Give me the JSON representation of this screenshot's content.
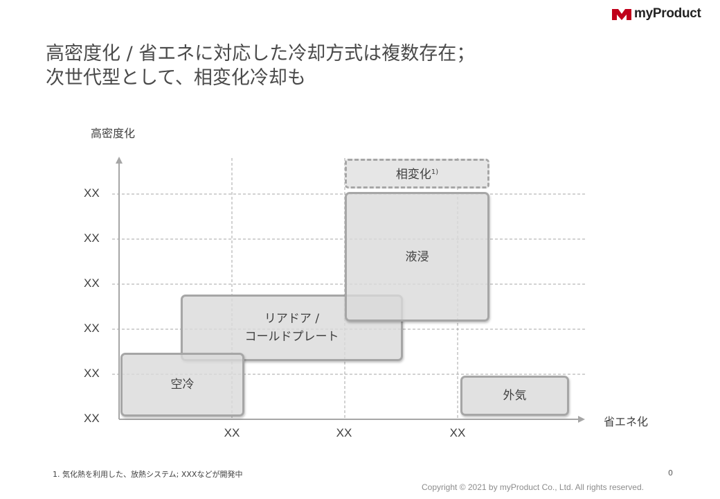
{
  "brand": {
    "name": "myProduct",
    "logo_color": "#c0001a"
  },
  "title": {
    "line1": "高密度化 / 省エネに対応した冷却方式は複数存在；",
    "line2": "次世代型として、相変化冷却も"
  },
  "diagram": {
    "y_axis_label": "高密度化",
    "x_axis_label": "省エネ化",
    "y_ticks": [
      "XX",
      "XX",
      "XX",
      "XX",
      "XX",
      "XX"
    ],
    "x_ticks": [
      "XX",
      "XX",
      "XX"
    ],
    "boxes": {
      "phase_change": {
        "label": "相変化",
        "note": "1)"
      },
      "immersion": {
        "label": "液浸"
      },
      "rear_door": {
        "line1": "リアドア /",
        "line2": "コールドプレート"
      },
      "air": {
        "label": "空冷"
      },
      "outside_air": {
        "label": "外気"
      }
    }
  },
  "footnote": "1. 気化熱を利用した、放熱システム; XXXなどが開発中",
  "page_number": "0",
  "copyright": "Copyright © 2021 by myProduct Co., Ltd.  All rights reserved."
}
